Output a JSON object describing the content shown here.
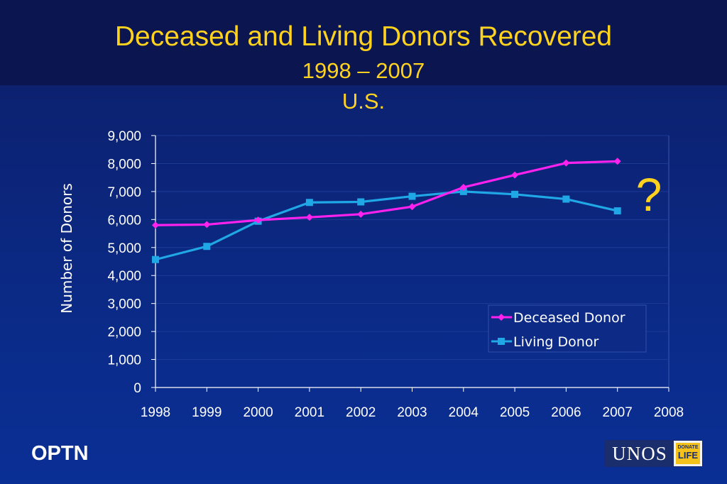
{
  "header": {
    "title": "Deceased and Living Donors Recovered",
    "subtitle": "1998 – 2007",
    "region": "U.S."
  },
  "chart_data": {
    "type": "line",
    "ylabel": "Number of Donors",
    "xlabel": "",
    "x": [
      1998,
      1999,
      2000,
      2001,
      2002,
      2003,
      2004,
      2005,
      2006,
      2007
    ],
    "xlim": [
      1998,
      2008
    ],
    "xticks": [
      "1998",
      "1999",
      "2000",
      "2001",
      "2002",
      "2003",
      "2004",
      "2005",
      "2006",
      "2007",
      "2008"
    ],
    "ylim": [
      0,
      9000
    ],
    "yticks": [
      "0",
      "1,000",
      "2,000",
      "3,000",
      "4,000",
      "5,000",
      "6,000",
      "7,000",
      "8,000",
      "9,000"
    ],
    "grid": true,
    "legend_position": "bottom-right",
    "annotation": "?",
    "series": [
      {
        "name": "Deceased Donor",
        "color": "#ff22ee",
        "marker": "diamond",
        "values": [
          5800,
          5820,
          5980,
          6080,
          6190,
          6460,
          7150,
          7590,
          8020,
          8080
        ]
      },
      {
        "name": "Living Donor",
        "color": "#1fa7e6",
        "marker": "square",
        "values": [
          4570,
          5040,
          5940,
          6610,
          6630,
          6830,
          7000,
          6900,
          6730,
          6310
        ]
      }
    ]
  },
  "footer": {
    "org": "OPTN",
    "logo_text": "UNOS",
    "logo_badge_top": "DONATE",
    "logo_badge_bottom": "LIFE"
  }
}
